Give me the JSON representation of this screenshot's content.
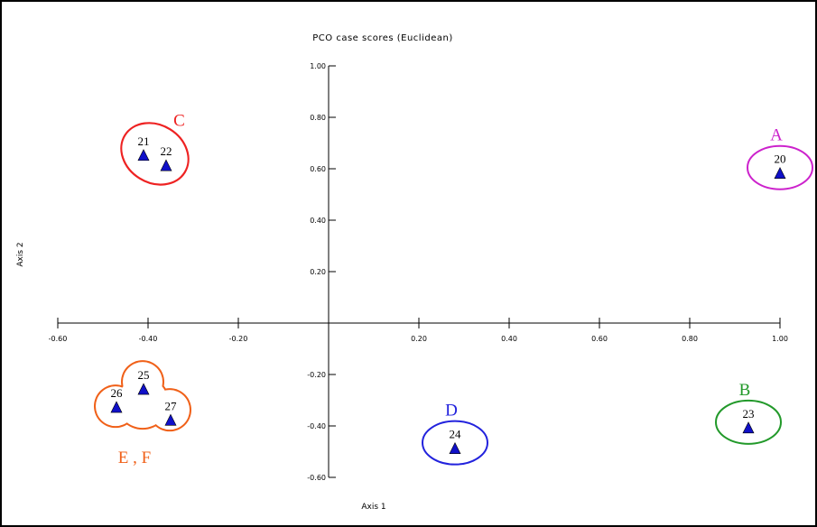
{
  "chart_data": {
    "type": "scatter",
    "title": "PCO case scores (Euclidean)",
    "xlabel": "Axis 1",
    "ylabel": "Axis 2",
    "xlim": [
      -0.6,
      1.0
    ],
    "ylim": [
      -0.6,
      1.0
    ],
    "x_ticks": [
      "-0.60",
      "-0.40",
      "-0.20",
      "0.20",
      "0.40",
      "0.60",
      "0.80",
      "1.00"
    ],
    "y_ticks": [
      "1.00",
      "0.80",
      "0.60",
      "0.40",
      "0.20",
      "-0.20",
      "-0.40",
      "-0.60"
    ],
    "marker": "triangle",
    "marker_color": "#1010c8",
    "points": [
      {
        "label": "20",
        "x": 1.0,
        "y": 0.58
      },
      {
        "label": "21",
        "x": -0.41,
        "y": 0.65
      },
      {
        "label": "22",
        "x": -0.36,
        "y": 0.61
      },
      {
        "label": "23",
        "x": 0.93,
        "y": -0.41
      },
      {
        "label": "24",
        "x": 0.28,
        "y": -0.49
      },
      {
        "label": "25",
        "x": -0.41,
        "y": -0.26
      },
      {
        "label": "26",
        "x": -0.47,
        "y": -0.33
      },
      {
        "label": "27",
        "x": -0.35,
        "y": -0.38
      }
    ],
    "groups": [
      {
        "label": "A",
        "color": "#cc22cc",
        "members": [
          "20"
        ]
      },
      {
        "label": "B",
        "color": "#22992a",
        "members": [
          "23"
        ]
      },
      {
        "label": "C",
        "color": "#ee2222",
        "members": [
          "21",
          "22"
        ]
      },
      {
        "label": "D",
        "color": "#2222dd",
        "members": [
          "24"
        ]
      },
      {
        "label": "E , F",
        "color": "#f06018",
        "members": [
          "25",
          "26",
          "27"
        ]
      }
    ]
  }
}
